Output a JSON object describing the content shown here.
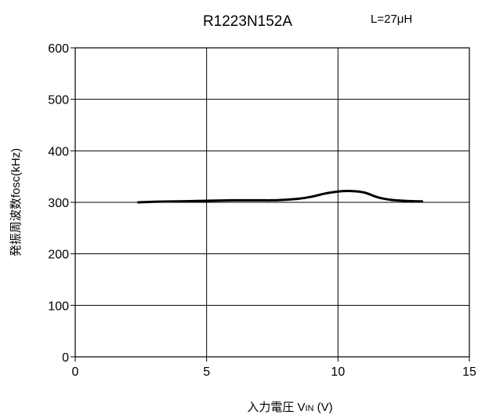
{
  "chart_data": {
    "type": "line",
    "title": "R1223N152A",
    "annotation": "L=27μH",
    "xlabel_main": "入力電圧 V",
    "xlabel_sub": "IN",
    "xlabel_unit": " (V)",
    "ylabel": "発振周波数fosc(kHz)",
    "xlim": [
      0,
      15
    ],
    "ylim": [
      0,
      600
    ],
    "xticks": [
      "0",
      "5",
      "10",
      "15"
    ],
    "yticks": [
      "0",
      "100",
      "200",
      "300",
      "400",
      "500",
      "600"
    ],
    "grid": true,
    "series": [
      {
        "x": [
          2.4,
          3.0,
          4.0,
          5.0,
          6.0,
          7.0,
          7.5,
          8.0,
          8.5,
          9.0,
          9.5,
          10.0,
          10.5,
          11.0,
          11.5,
          12.0,
          12.5,
          13.0,
          13.2
        ],
        "y": [
          300,
          301,
          302,
          303,
          304,
          304,
          304,
          305,
          307,
          311,
          317,
          321,
          322,
          319,
          310,
          305,
          303,
          302,
          302
        ]
      }
    ]
  }
}
